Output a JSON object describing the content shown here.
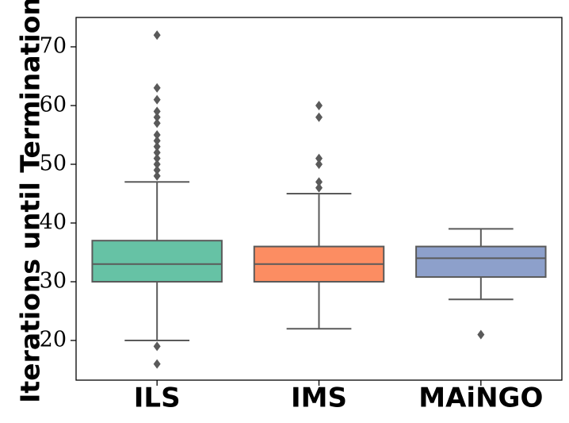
{
  "chart_data": {
    "type": "box",
    "title": "",
    "xlabel": "",
    "ylabel": "Iterations until Termination",
    "ylim": [
      13,
      75
    ],
    "yticks": [
      20,
      30,
      40,
      50,
      60,
      70
    ],
    "grid": false,
    "categories": [
      "ILS",
      "IMS",
      "MAiNGO"
    ],
    "boxes": [
      {
        "category": "ILS",
        "color": "#66c2a5",
        "whisker_low": 20,
        "q1": 30,
        "median": 33,
        "q3": 37,
        "whisker_high": 47,
        "outliers": [
          16,
          19,
          48,
          49,
          50,
          51,
          52,
          53,
          54,
          55,
          57,
          58,
          59,
          61,
          63,
          72
        ]
      },
      {
        "category": "IMS",
        "color": "#fc8d62",
        "whisker_low": 22,
        "q1": 30,
        "median": 33,
        "q3": 36,
        "whisker_high": 45,
        "outliers": [
          46,
          47,
          50,
          51,
          58,
          60
        ]
      },
      {
        "category": "MAiNGO",
        "color": "#8da0cb",
        "whisker_low": 27,
        "q1": 30.8,
        "median": 34,
        "q3": 36,
        "whisker_high": 39,
        "outliers": [
          21
        ]
      }
    ]
  }
}
